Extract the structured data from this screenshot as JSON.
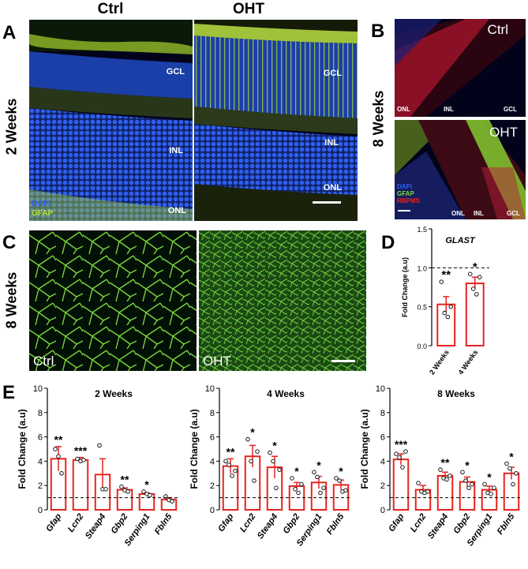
{
  "panel_a": {
    "letter": "A",
    "col_ctrl": "Ctrl",
    "col_oht": "OHT",
    "row_label": "2 Weeks",
    "layer_gcl": "GCL",
    "layer_inl": "INL",
    "layer_onl": "ONL",
    "legend_dapi": "DAPI",
    "legend_gfap": "GFAP"
  },
  "panel_b": {
    "letter": "B",
    "row_label": "8 Weeks",
    "ctrl_label": "Ctrl",
    "oht_label": "OHT",
    "layer_onl": "ONL",
    "layer_inl": "INL",
    "layer_gcl": "GCL",
    "legend_dapi": "DAPI",
    "legend_gfap": "GFAP",
    "legend_rbpms": "RBPMS"
  },
  "panel_c": {
    "letter": "C",
    "row_label": "8 Weeks",
    "ctrl_label": "Ctrl",
    "oht_label": "OHT"
  },
  "panel_d_letter": "D",
  "panel_e_letter": "E",
  "colors": {
    "bar_edge": "#e8231f",
    "dapi_blue": "#1f4fd8",
    "gfap_green": "#b8e63a",
    "rbpms_red": "#e8231f",
    "flat_mount_green": "#7ddc3a"
  },
  "chart_data": [
    {
      "id": "D",
      "type": "bar",
      "title": "GLAST",
      "ylabel": "Fold Change (a.u)",
      "ylim": [
        0,
        1.5
      ],
      "yticks": [
        "0.0",
        "0.5",
        "1.0",
        "1.5"
      ],
      "categories": [
        "2 Weeks",
        "4 Weeks"
      ],
      "values": [
        0.53,
        0.8
      ],
      "errors": [
        0.1,
        0.08
      ],
      "significance": [
        "**",
        "*"
      ],
      "baseline": 1.0,
      "points": [
        [
          0.82,
          0.42,
          0.37,
          0.5
        ],
        [
          0.92,
          0.73,
          0.66,
          0.88
        ]
      ]
    },
    {
      "id": "E1",
      "type": "bar",
      "title": "2 Weeks",
      "ylabel": "Fold Change (a.u)",
      "ylim": [
        0,
        10
      ],
      "yticks": [
        "0",
        "2",
        "4",
        "6",
        "8",
        "10"
      ],
      "categories": [
        "Gfap",
        "Lcn2",
        "Steap4",
        "Gbp2",
        "Serping1",
        "Fbln5"
      ],
      "values": [
        4.2,
        4.1,
        2.9,
        1.65,
        1.3,
        0.85
      ],
      "errors": [
        1.0,
        0.2,
        1.3,
        0.15,
        0.1,
        0.15
      ],
      "significance": [
        "**",
        "***",
        "",
        "**",
        "*",
        ""
      ],
      "baseline": 1.0,
      "points": [
        [
          5.0,
          4.4,
          3.0
        ],
        [
          4.2,
          4.0,
          4.1
        ],
        [
          5.3,
          1.7,
          1.7
        ],
        [
          1.9,
          1.6,
          1.5
        ],
        [
          1.5,
          1.3,
          1.2
        ],
        [
          1.1,
          0.8,
          0.7
        ]
      ]
    },
    {
      "id": "E2",
      "type": "bar",
      "title": "4 Weeks",
      "ylabel": "Fold  Change (a.u)",
      "ylim": [
        0,
        10
      ],
      "yticks": [
        "0",
        "2",
        "4",
        "6",
        "8",
        "10"
      ],
      "categories": [
        "Gfap",
        "Lcn2",
        "Steap4",
        "Gbp2",
        "Serping1",
        "Fbln5"
      ],
      "values": [
        3.6,
        4.4,
        3.5,
        1.95,
        2.25,
        2.05
      ],
      "errors": [
        0.6,
        0.9,
        0.9,
        0.3,
        0.5,
        0.4
      ],
      "significance": [
        "**",
        "*",
        "*",
        "*",
        "*",
        "*"
      ],
      "baseline": 1.0,
      "points": [
        [
          4.0,
          3.7,
          2.8,
          3.2
        ],
        [
          5.8,
          4.0,
          2.4,
          4.8
        ],
        [
          4.7,
          4.0,
          1.8,
          3.3
        ],
        [
          2.6,
          1.7,
          1.4,
          2.1
        ],
        [
          3.1,
          2.7,
          1.4,
          1.8
        ],
        [
          2.6,
          2.4,
          1.5,
          1.6
        ]
      ]
    },
    {
      "id": "E3",
      "type": "bar",
      "title": "8 Weeks",
      "ylabel": "Fold Change (a.u)",
      "ylim": [
        0,
        10
      ],
      "yticks": [
        "0",
        "2",
        "4",
        "6",
        "8",
        "10"
      ],
      "categories": [
        "Gfap",
        "Lcn2",
        "Steap4",
        "Gbp2",
        "Serping1",
        "Fbln5"
      ],
      "values": [
        4.15,
        1.65,
        2.8,
        2.3,
        1.65,
        3.0
      ],
      "errors": [
        0.45,
        0.35,
        0.3,
        0.4,
        0.3,
        0.5
      ],
      "significance": [
        "***",
        "",
        "**",
        "*",
        "*",
        "*"
      ],
      "baseline": 1.0,
      "points": [
        [
          4.6,
          4.3,
          3.5,
          4.8
        ],
        [
          2.2,
          1.5,
          1.4,
          1.5
        ],
        [
          3.3,
          2.6,
          2.5,
          2.8
        ],
        [
          3.1,
          2.4,
          1.8,
          2.1
        ],
        [
          2.1,
          1.4,
          1.3,
          1.8
        ],
        [
          3.8,
          3.4,
          2.1,
          3.0
        ]
      ]
    }
  ]
}
